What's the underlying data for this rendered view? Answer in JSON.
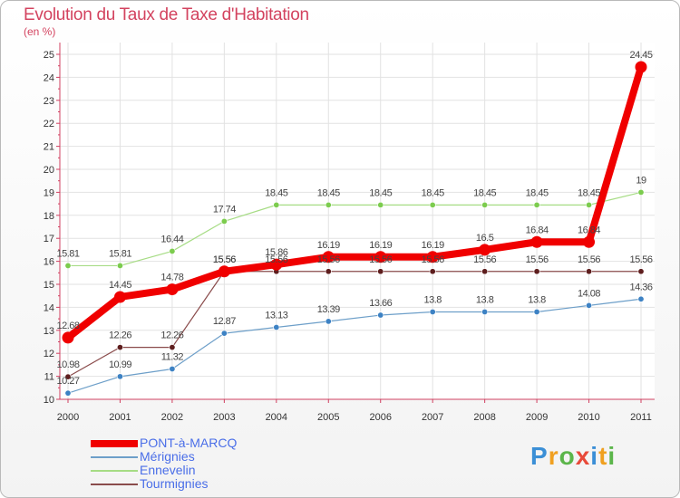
{
  "title": "Evolution du Taux de Taxe d'Habitation",
  "subtitle": "(en %)",
  "logo": {
    "letters": [
      {
        "ch": "P",
        "color": "#3b8fd6"
      },
      {
        "ch": "r",
        "color": "#f0a020"
      },
      {
        "ch": "o",
        "color": "#5bb54a"
      },
      {
        "ch": "x",
        "color": "#e84a3a"
      },
      {
        "ch": "i",
        "color": "#3b8fd6"
      },
      {
        "ch": "t",
        "color": "#f0a020"
      },
      {
        "ch": "i",
        "color": "#5bb54a"
      }
    ]
  },
  "chart_data": {
    "type": "line",
    "x": [
      "2000",
      "2001",
      "2002",
      "2003",
      "2004",
      "2005",
      "2006",
      "2007",
      "2008",
      "2009",
      "2010",
      "2011"
    ],
    "yticks": [
      10,
      11,
      12,
      13,
      14,
      15,
      16,
      17,
      18,
      19,
      20,
      21,
      22,
      23,
      24,
      25
    ],
    "ylim": [
      10,
      25
    ],
    "grid": true,
    "legend": "bottom-left",
    "series": [
      {
        "name": "Mérignies",
        "color": "#6d9fc9",
        "marker": "#3d82c4",
        "width": 1.2,
        "values": [
          10.27,
          10.99,
          11.32,
          12.87,
          13.13,
          13.39,
          13.66,
          13.8,
          13.8,
          13.8,
          14.08,
          14.36
        ],
        "labels": [
          "10.27",
          "10.99",
          "11.32",
          "12.87",
          "13.13",
          "13.39",
          "13.66",
          "13.8",
          "13.8",
          "13.8",
          "14.08",
          "14.36"
        ]
      },
      {
        "name": "Ennevelin",
        "color": "#a6dc84",
        "marker": "#7ccc4e",
        "width": 1.2,
        "values": [
          15.81,
          15.81,
          16.44,
          17.74,
          18.45,
          18.45,
          18.45,
          18.45,
          18.45,
          18.45,
          18.45,
          19
        ],
        "labels": [
          "15.81",
          "15.81",
          "16.44",
          "17.74",
          "18.45",
          "18.45",
          "18.45",
          "18.45",
          "18.45",
          "18.45",
          "18.45",
          "19"
        ]
      },
      {
        "name": "Tourmignies",
        "color": "#8a4b4b",
        "marker": "#5e1e1e",
        "width": 1.2,
        "values": [
          10.98,
          12.26,
          12.26,
          15.56,
          15.56,
          15.56,
          15.56,
          15.56,
          15.56,
          15.56,
          15.56,
          15.56
        ],
        "labels": [
          "10.98",
          "12.26",
          "12.26",
          "15.56",
          "15.56",
          "15.56",
          "15.56",
          "15.56",
          "15.56",
          "15.56",
          "15.56",
          "15.56"
        ]
      },
      {
        "name": "PONT-à-MARCQ",
        "color": "#f00000",
        "marker": "#f00000",
        "width": 8,
        "values": [
          12.68,
          14.45,
          14.78,
          15.56,
          15.86,
          16.19,
          16.19,
          16.19,
          16.5,
          16.84,
          16.84,
          24.45
        ],
        "labels": [
          "12.68",
          "14.45",
          "14.78",
          "15.56",
          "15.86",
          "16.19",
          "16.19",
          "16.19",
          "16.5",
          "16.84",
          "16.84",
          "24.45"
        ]
      }
    ],
    "legend_order": [
      3,
      0,
      1,
      2
    ]
  }
}
